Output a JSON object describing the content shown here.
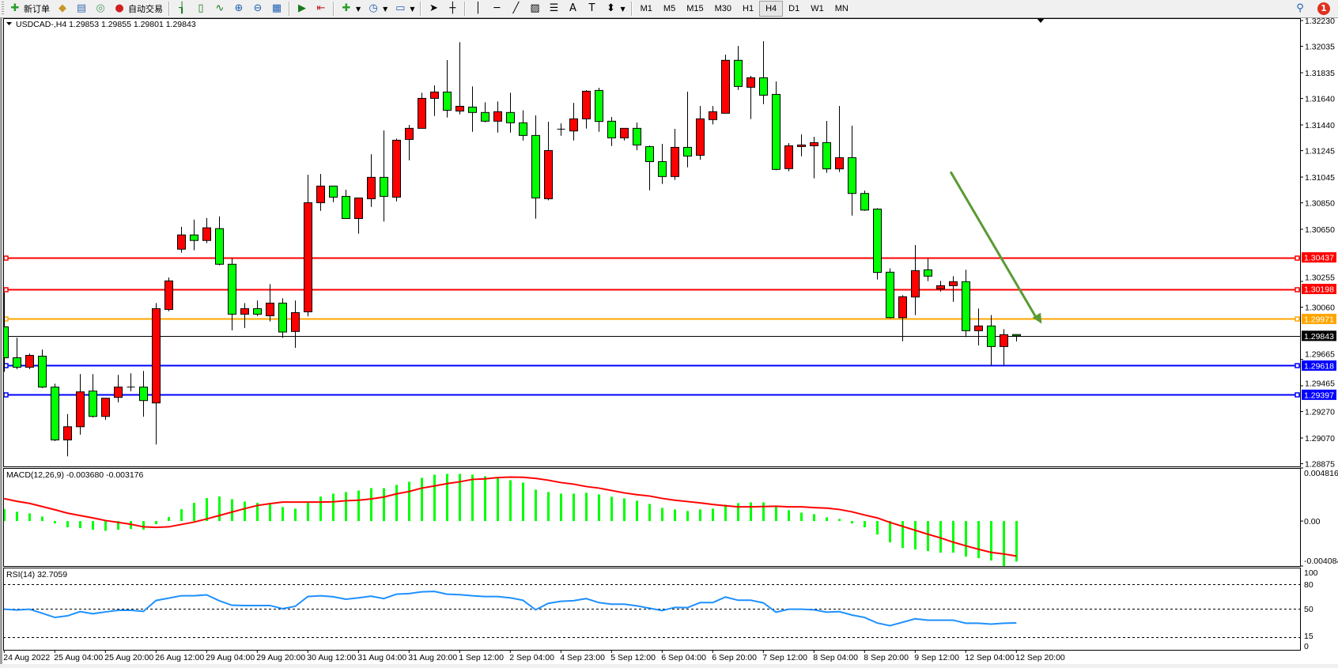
{
  "toolbar": {
    "new_order_label": "新订单",
    "auto_trading_label": "自动交易",
    "timeframes": [
      "M1",
      "M5",
      "M15",
      "M30",
      "H1",
      "H4",
      "D1",
      "W1",
      "MN"
    ],
    "active_timeframe": "H4",
    "notification_count": "1"
  },
  "chart": {
    "symbol_header": "USDCAD-,H4  1.29853 1.29855 1.29801 1.29843",
    "bull_color": "#ff0000",
    "bear_color": "#00ff00",
    "price_axis_labels": [
      "1.32230",
      "1.32035",
      "1.31835",
      "1.31640",
      "1.31440",
      "1.31245",
      "1.31045",
      "1.30850",
      "1.30650",
      "1.30255",
      "1.30060",
      "1.29665",
      "1.29465",
      "1.29270",
      "1.29070",
      "1.28875"
    ],
    "horizontal_lines": [
      {
        "price": "1.30437",
        "color": "#ff0000"
      },
      {
        "price": "1.30198",
        "color": "#ff0000"
      },
      {
        "price": "1.29971",
        "color": "#ffa500"
      },
      {
        "price": "1.29843",
        "color": "#000000"
      },
      {
        "price": "1.29618",
        "color": "#0000ff"
      },
      {
        "price": "1.29397",
        "color": "#0000ff"
      }
    ],
    "arrow": {
      "color": "#5a9a32",
      "from_bar": 74.8,
      "from_price": 1.31085,
      "to_bar": 82,
      "to_price": 1.29935
    },
    "time_labels": [
      "24 Aug 2022",
      "25 Aug 04:00",
      "25 Aug 20:00",
      "26 Aug 12:00",
      "29 Aug 04:00",
      "29 Aug 20:00",
      "30 Aug 12:00",
      "31 Aug 04:00",
      "31 Aug 20:00",
      "1 Sep 12:00",
      "2 Sep 04:00",
      "4 Sep 23:00",
      "5 Sep 12:00",
      "6 Sep 04:00",
      "6 Sep 20:00",
      "7 Sep 12:00",
      "8 Sep 04:00",
      "8 Sep 20:00",
      "9 Sep 12:00",
      "12 Sep 04:00",
      "12 Sep 20:00"
    ]
  },
  "macd": {
    "label": "MACD(12,26,9) -0.003680 -0.003176",
    "axis_labels": [
      "0.004816",
      "0.00",
      "-0.004084"
    ],
    "hist_color": "#00ff00",
    "signal_color": "#ff0000"
  },
  "rsi": {
    "label": "RSI(14) 32.7059",
    "axis_labels": [
      "100",
      "80",
      "50",
      "15",
      "0"
    ],
    "levels": [
      80,
      50,
      15
    ],
    "line_color": "#1e90ff"
  },
  "chart_data": [
    {
      "type": "candlestick",
      "title": "USDCAD-,H4",
      "ylim": [
        1.28875,
        1.3223
      ],
      "ohlc": [
        [
          1.29911,
          1.30171,
          1.29571,
          1.29677
        ],
        [
          1.29677,
          1.29829,
          1.29591,
          1.29605
        ],
        [
          1.29605,
          1.29709,
          1.29591,
          1.29695
        ],
        [
          1.29689,
          1.29739,
          1.29447,
          1.29455
        ],
        [
          1.29455,
          1.29481,
          1.29047,
          1.29055
        ],
        [
          1.29055,
          1.29251,
          1.28931,
          1.29155
        ],
        [
          1.29155,
          1.29553,
          1.29095,
          1.29419
        ],
        [
          1.29425,
          1.29553,
          1.29225,
          1.29233
        ],
        [
          1.29233,
          1.29371,
          1.29207,
          1.29371
        ],
        [
          1.29377,
          1.29547,
          1.29339,
          1.29455
        ],
        [
          1.29455,
          1.29559,
          1.29423,
          1.29455
        ],
        [
          1.29455,
          1.29577,
          1.29231,
          1.29353
        ],
        [
          1.29335,
          1.30091,
          1.29021,
          1.30049
        ],
        [
          1.30043,
          1.30285,
          1.30029,
          1.30259
        ],
        [
          1.30499,
          1.30669,
          1.30473,
          1.30607
        ],
        [
          1.30607,
          1.30723,
          1.30491,
          1.30565
        ],
        [
          1.30565,
          1.30735,
          1.30545,
          1.30661
        ],
        [
          1.30655,
          1.30747,
          1.30377,
          1.30385
        ],
        [
          1.30385,
          1.30431,
          1.29885,
          1.30007
        ],
        [
          1.30007,
          1.30091,
          1.29903,
          1.30049
        ],
        [
          1.30049,
          1.30111,
          1.29993,
          1.30007
        ],
        [
          1.29995,
          1.30235,
          1.29952,
          1.30091
        ],
        [
          1.30091,
          1.30127,
          1.29828,
          1.29872
        ],
        [
          1.29876,
          1.30111,
          1.29752,
          1.30019
        ],
        [
          1.30025,
          1.31063,
          1.29991,
          1.30851
        ],
        [
          1.30851,
          1.31069,
          1.30789,
          1.30977
        ],
        [
          1.30977,
          1.30977,
          1.30855,
          1.30893
        ],
        [
          1.30899,
          1.30949,
          1.30731,
          1.30731
        ],
        [
          1.30731,
          1.30887,
          1.30616,
          1.30887
        ],
        [
          1.30881,
          1.31218,
          1.30819,
          1.31043
        ],
        [
          1.31043,
          1.31398,
          1.30708,
          1.30899
        ],
        [
          1.30893,
          1.31336,
          1.30861,
          1.31324
        ],
        [
          1.3133,
          1.3144,
          1.31172,
          1.31414
        ],
        [
          1.31414,
          1.31683,
          1.31414,
          1.31641
        ],
        [
          1.31641,
          1.31739,
          1.31508,
          1.31689
        ],
        [
          1.31689,
          1.31931,
          1.31496,
          1.31551
        ],
        [
          1.31545,
          1.32066,
          1.3152,
          1.31581
        ],
        [
          1.31575,
          1.31731,
          1.31388,
          1.31534
        ],
        [
          1.31534,
          1.31611,
          1.3146,
          1.31468
        ],
        [
          1.31468,
          1.31617,
          1.31382,
          1.3154
        ],
        [
          1.31534,
          1.31683,
          1.31382,
          1.31456
        ],
        [
          1.31456,
          1.31551,
          1.31322,
          1.3136
        ],
        [
          1.3136,
          1.31512,
          1.3073,
          1.30887
        ],
        [
          1.30881,
          1.31464,
          1.30869,
          1.31246
        ],
        [
          1.31408,
          1.31452,
          1.31358,
          1.31408
        ],
        [
          1.31394,
          1.31607,
          1.31322,
          1.31486
        ],
        [
          1.31486,
          1.31703,
          1.31412,
          1.31695
        ],
        [
          1.31701,
          1.31721,
          1.31388,
          1.31466
        ],
        [
          1.31468,
          1.315,
          1.3128,
          1.31342
        ],
        [
          1.31342,
          1.31414,
          1.31322,
          1.31414
        ],
        [
          1.31414,
          1.31458,
          1.31248,
          1.31288
        ],
        [
          1.31276,
          1.31284,
          1.30945,
          1.31162
        ],
        [
          1.31162,
          1.31296,
          1.30993,
          1.31049
        ],
        [
          1.31049,
          1.3141,
          1.31023,
          1.3127
        ],
        [
          1.3127,
          1.31691,
          1.31119,
          1.31204
        ],
        [
          1.3121,
          1.31583,
          1.31176,
          1.31486
        ],
        [
          1.3148,
          1.31583,
          1.31444,
          1.3154
        ],
        [
          1.31528,
          1.31972,
          1.31528,
          1.31929
        ],
        [
          1.31929,
          1.32038,
          1.31705,
          1.31731
        ],
        [
          1.31725,
          1.31811,
          1.31484,
          1.31797
        ],
        [
          1.31797,
          1.32074,
          1.31597,
          1.31665
        ],
        [
          1.31671,
          1.31769,
          1.31097,
          1.31103
        ],
        [
          1.31109,
          1.31302,
          1.31089,
          1.31282
        ],
        [
          1.31276,
          1.31368,
          1.31202,
          1.31288
        ],
        [
          1.31282,
          1.3135,
          1.31035,
          1.31306
        ],
        [
          1.31306,
          1.3147,
          1.31077,
          1.31107
        ],
        [
          1.31107,
          1.31583,
          1.31083,
          1.31192
        ],
        [
          1.31192,
          1.31434,
          1.30753,
          1.30921
        ],
        [
          1.30921,
          1.30943,
          1.30789,
          1.30795
        ],
        [
          1.30803,
          1.30809,
          1.30269,
          1.30323
        ],
        [
          1.30325,
          1.30354,
          1.29975,
          1.29981
        ],
        [
          1.29981,
          1.30151,
          1.29802,
          1.30139
        ],
        [
          1.30137,
          1.3053,
          1.3,
          1.30337
        ],
        [
          1.30343,
          1.30426,
          1.30257,
          1.30295
        ],
        [
          1.30199,
          1.30259,
          1.30179,
          1.30223
        ],
        [
          1.30223,
          1.30295,
          1.30101,
          1.30253
        ],
        [
          1.30253,
          1.30343,
          1.29834,
          1.29882
        ],
        [
          1.29882,
          1.3005,
          1.2977,
          1.29918
        ],
        [
          1.29918,
          1.30001,
          1.29618,
          1.29762
        ],
        [
          1.29762,
          1.29894,
          1.29618,
          1.29852
        ],
        [
          1.29853,
          1.29855,
          1.29801,
          1.29843
        ]
      ]
    },
    {
      "type": "bar",
      "title": "MACD(12,26,9)",
      "ylim": [
        -0.004084,
        0.004816
      ],
      "histogram": [
        0.001077,
        0.000837,
        0.000694,
        0.000407,
        -0.000215,
        -0.000574,
        -0.000646,
        -0.000789,
        -0.000885,
        -0.000789,
        -0.000718,
        -0.000789,
        -0.000287,
        0.000359,
        0.001077,
        0.001651,
        0.002081,
        0.002225,
        0.001986,
        0.00177,
        0.001651,
        0.001507,
        0.001268,
        0.001124,
        0.001651,
        0.002225,
        0.002488,
        0.002632,
        0.002775,
        0.00299,
        0.00299,
        0.003278,
        0.003565,
        0.003923,
        0.004211,
        0.004282,
        0.004282,
        0.004211,
        0.004067,
        0.003923,
        0.003708,
        0.003493,
        0.002847,
        0.002632,
        0.002488,
        0.002488,
        0.00256,
        0.002416,
        0.002201,
        0.002057,
        0.001842,
        0.001555,
        0.001196,
        0.001053,
        0.000909,
        0.001053,
        0.001124,
        0.001483,
        0.001627,
        0.001699,
        0.001699,
        0.001268,
        0.000981,
        0.000766,
        0.000622,
        0.000335,
        0.000191,
        -0.000215,
        -0.000574,
        -0.00122,
        -0.001938,
        -0.00244,
        -0.002584,
        -0.002727,
        -0.002871,
        -0.002871,
        -0.00323,
        -0.003373,
        -0.003589,
        -0.004084,
        -0.00368
      ],
      "signal": [
        0.002033,
        0.001794,
        0.001603,
        0.001316,
        0.001029,
        0.000718,
        0.000502,
        0.000287,
        4.8e-05,
        -0.00012,
        -0.000287,
        -0.000526,
        -0.000574,
        -0.000526,
        -0.000311,
        -9.6e-05,
        0.000191,
        0.000502,
        0.000813,
        0.001124,
        0.001411,
        0.001579,
        0.001722,
        0.001722,
        0.001722,
        0.001722,
        0.001746,
        0.001842,
        0.00189,
        0.00201,
        0.002177,
        0.002464,
        0.002679,
        0.00299,
        0.003182,
        0.003397,
        0.003565,
        0.00378,
        0.003828,
        0.003947,
        0.003995,
        0.003971,
        0.003876,
        0.003708,
        0.003493,
        0.003349,
        0.003134,
        0.00299,
        0.002775,
        0.00256,
        0.002392,
        0.002273,
        0.002057,
        0.00189,
        0.00177,
        0.001651,
        0.001507,
        0.001388,
        0.001292,
        0.001292,
        0.001316,
        0.00134,
        0.001292,
        0.001292,
        0.00122,
        0.001172,
        0.001053,
        0.000837,
        0.00055,
        0.000287,
        -0.00012,
        -0.000478,
        -0.000837,
        -0.001196,
        -0.001531,
        -0.001914,
        -0.002249,
        -0.00256,
        -0.002847,
        -0.00299,
        -0.003176
      ]
    },
    {
      "type": "line",
      "title": "RSI(14)",
      "ylim": [
        0,
        100
      ],
      "values": [
        49.4,
        48.4,
        49.4,
        44.5,
        39.4,
        41.3,
        46.5,
        43.9,
        46.1,
        48.1,
        48.1,
        46.8,
        60,
        62.9,
        65.8,
        65.8,
        66.8,
        59.7,
        54.2,
        53.9,
        53.9,
        53.9,
        50,
        52.9,
        64.8,
        65.8,
        64.5,
        61.6,
        63.2,
        65.2,
        62.3,
        67.7,
        68.4,
        70.6,
        71,
        67.7,
        67.1,
        65.8,
        64.8,
        64.8,
        63.2,
        60.3,
        48.7,
        56.5,
        59,
        59.7,
        62.3,
        57.4,
        55.5,
        55.5,
        53.5,
        50.6,
        47.7,
        51.6,
        51.3,
        57.4,
        57.4,
        64.2,
        60.3,
        60.3,
        57.1,
        45.8,
        49.4,
        49.4,
        48.7,
        45.8,
        46.5,
        42.3,
        39.4,
        32.6,
        29.4,
        33.5,
        37.7,
        36.1,
        36.1,
        36.1,
        32.3,
        32.3,
        31.3,
        32.3,
        32.7059
      ]
    }
  ]
}
